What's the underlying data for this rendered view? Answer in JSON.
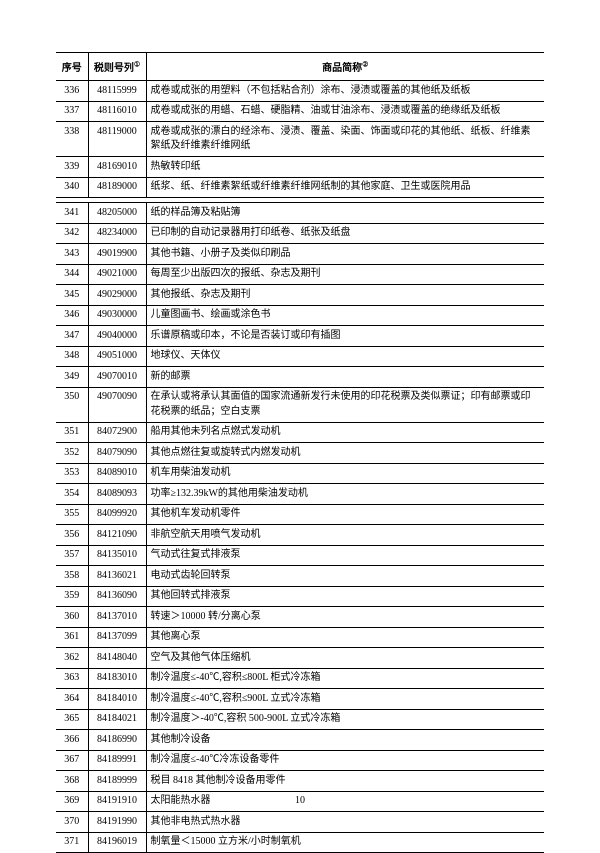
{
  "table": {
    "headers": {
      "seq": "序号",
      "code": "税则号列",
      "name": "商品简称"
    },
    "rows": [
      {
        "seq": "336",
        "code": "48115999",
        "name": "成卷或成张的用塑料（不包括粘合剂）涂布、浸渍或覆盖的其他纸及纸板"
      },
      {
        "seq": "337",
        "code": "48116010",
        "name": "成卷或成张的用蜡、石蜡、硬脂精、油或甘油涂布、浸渍或覆盖的绝缘纸及纸板"
      },
      {
        "seq": "338",
        "code": "48119000",
        "name": "成卷或成张的漂白的经涂布、浸渍、覆盖、染面、饰面或印花的其他纸、纸板、纤维素絮纸及纤维素纤维网纸"
      },
      {
        "seq": "339",
        "code": "48169010",
        "name": "热敏转印纸"
      },
      {
        "seq": "340",
        "code": "48189000",
        "name": "纸浆、纸、纤维素絮纸或纤维素纤维网纸制的其他家庭、卫生或医院用品",
        "gap_after": true
      },
      {
        "seq": "341",
        "code": "48205000",
        "name": "纸的样品簿及粘贴簿"
      },
      {
        "seq": "342",
        "code": "48234000",
        "name": "已印制的自动记录器用打印纸卷、纸张及纸盘"
      },
      {
        "seq": "343",
        "code": "49019900",
        "name": "其他书籍、小册子及类似印刷品"
      },
      {
        "seq": "344",
        "code": "49021000",
        "name": "每周至少出版四次的报纸、杂志及期刊"
      },
      {
        "seq": "345",
        "code": "49029000",
        "name": "其他报纸、杂志及期刊"
      },
      {
        "seq": "346",
        "code": "49030000",
        "name": "儿童图画书、绘画或涂色书"
      },
      {
        "seq": "347",
        "code": "49040000",
        "name": "乐谱原稿或印本，不论是否装订或印有插图"
      },
      {
        "seq": "348",
        "code": "49051000",
        "name": "地球仪、天体仪"
      },
      {
        "seq": "349",
        "code": "49070010",
        "name": "新的邮票"
      },
      {
        "seq": "350",
        "code": "49070090",
        "name": "在承认或将承认其面值的国家流通新发行未使用的印花税票及类似票证；印有邮票或印花税票的纸品；空白支票"
      },
      {
        "seq": "351",
        "code": "84072900",
        "name": "船用其他未列名点燃式发动机"
      },
      {
        "seq": "352",
        "code": "84079090",
        "name": "其他点燃往复或旋转式内燃发动机"
      },
      {
        "seq": "353",
        "code": "84089010",
        "name": "机车用柴油发动机"
      },
      {
        "seq": "354",
        "code": "84089093",
        "name": "功率≥132.39kW的其他用柴油发动机"
      },
      {
        "seq": "355",
        "code": "84099920",
        "name": "其他机车发动机零件"
      },
      {
        "seq": "356",
        "code": "84121090",
        "name": "非航空航天用喷气发动机"
      },
      {
        "seq": "357",
        "code": "84135010",
        "name": "气动式往复式排液泵"
      },
      {
        "seq": "358",
        "code": "84136021",
        "name": "电动式齿轮回转泵"
      },
      {
        "seq": "359",
        "code": "84136090",
        "name": "其他回转式排液泵"
      },
      {
        "seq": "360",
        "code": "84137010",
        "name": "转速＞10000 转/分离心泵"
      },
      {
        "seq": "361",
        "code": "84137099",
        "name": "其他离心泵"
      },
      {
        "seq": "362",
        "code": "84148040",
        "name": "空气及其他气体压缩机"
      },
      {
        "seq": "363",
        "code": "84183010",
        "name": "制冷温度≤-40℃,容积≤800L 柜式冷冻箱"
      },
      {
        "seq": "364",
        "code": "84184010",
        "name": "制冷温度≤-40℃,容积≤900L 立式冷冻箱"
      },
      {
        "seq": "365",
        "code": "84184021",
        "name": "制冷温度＞-40℃,容积 500-900L 立式冷冻箱"
      },
      {
        "seq": "366",
        "code": "84186990",
        "name": "其他制冷设备"
      },
      {
        "seq": "367",
        "code": "84189991",
        "name": "制冷温度≤-40℃冷冻设备零件"
      },
      {
        "seq": "368",
        "code": "84189999",
        "name": "税目 8418 其他制冷设备用零件"
      },
      {
        "seq": "369",
        "code": "84191910",
        "name": "太阳能热水器"
      },
      {
        "seq": "370",
        "code": "84191990",
        "name": "其他非电热式热水器"
      },
      {
        "seq": "371",
        "code": "84196019",
        "name": "制氧量＜15000 立方米/小时制氧机"
      }
    ]
  },
  "page_number": "10",
  "colors": {
    "border": "#000000",
    "background": "#ffffff",
    "text": "#000000"
  }
}
